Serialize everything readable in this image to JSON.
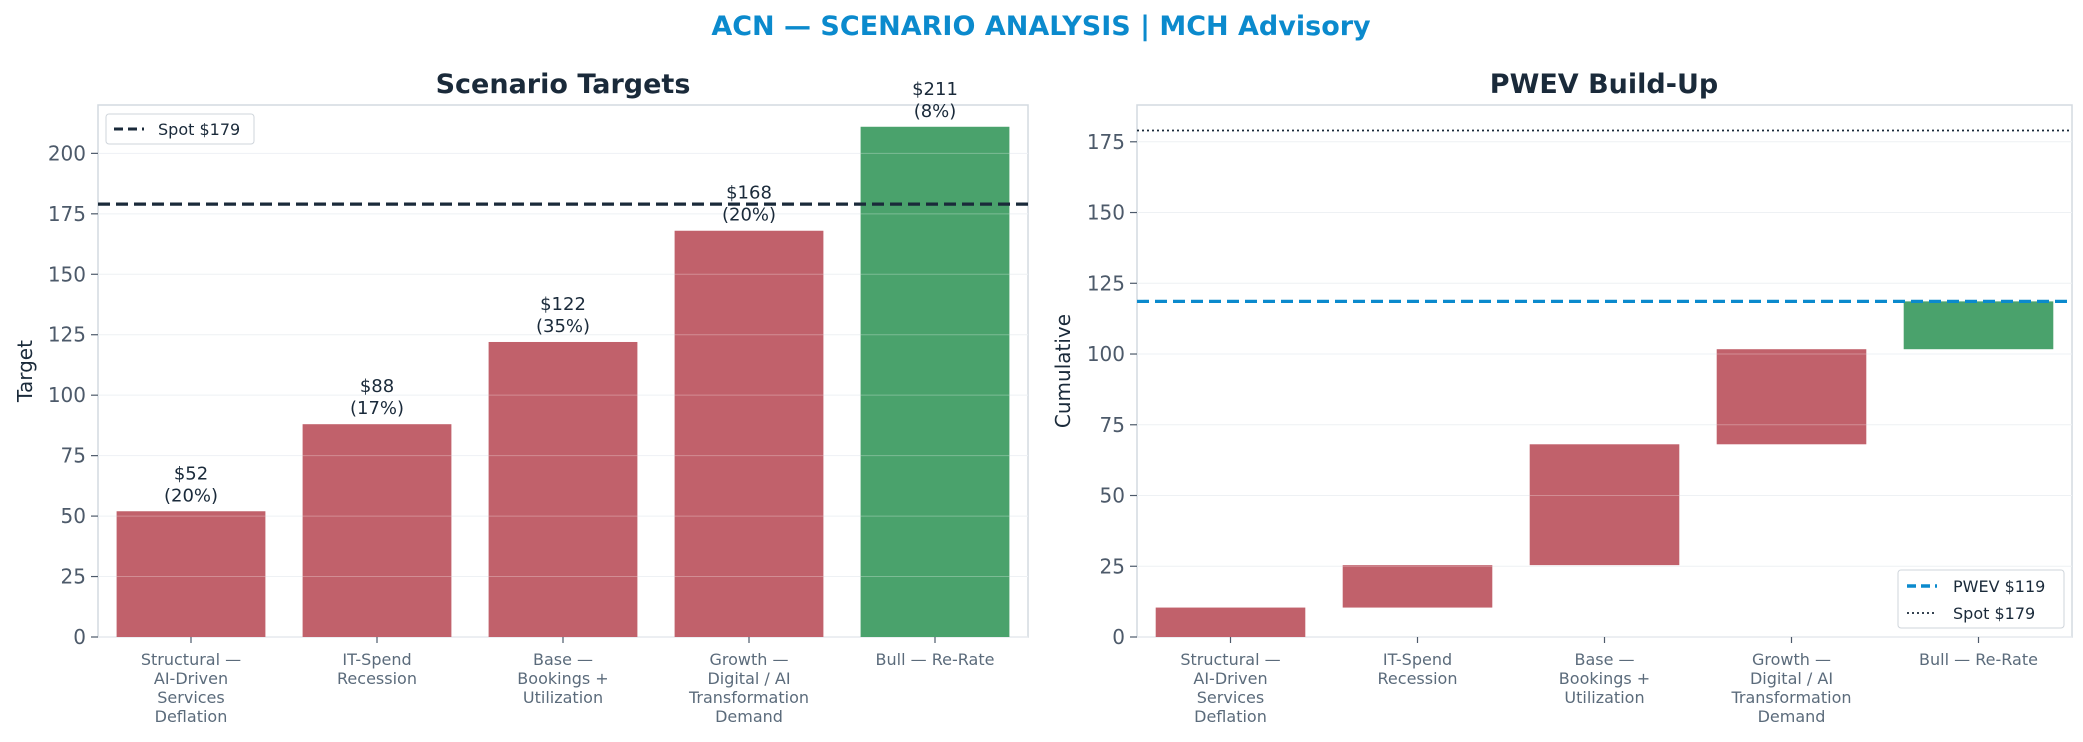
{
  "title": "ACN — SCENARIO ANALYSIS | MCH Advisory",
  "colors": {
    "title": "#0b8acd",
    "bear": "#c1616b",
    "bull": "#4aa26c",
    "spot": "#1a2a3a",
    "pwev": "#0b8acd"
  },
  "chart_data": [
    {
      "type": "bar",
      "title": "Scenario Targets",
      "xlabel": "",
      "ylabel": "Target",
      "ylim": [
        0,
        220
      ],
      "yticks": [
        0,
        25,
        50,
        75,
        100,
        125,
        150,
        175,
        200
      ],
      "categories": [
        "Structural — AI-Driven Services Deflation",
        "IT-Spend Recession",
        "Base — Bookings + Utilization",
        "Growth — Digital / AI Transformation Demand",
        "Bull — Re-Rate"
      ],
      "category_lines": [
        [
          "Structural —",
          "AI-Driven",
          "Services",
          "Deflation"
        ],
        [
          "IT-Spend",
          "Recession"
        ],
        [
          "Base —",
          "Bookings +",
          "Utilization"
        ],
        [
          "Growth —",
          "Digital / AI",
          "Transformation",
          "Demand"
        ],
        [
          "Bull — Re-Rate"
        ]
      ],
      "values": [
        52,
        88,
        122,
        168,
        211
      ],
      "data_labels": [
        [
          "$52",
          "(20%)"
        ],
        [
          "$88",
          "(17%)"
        ],
        [
          "$122",
          "(35%)"
        ],
        [
          "$168",
          "(20%)"
        ],
        [
          "$211",
          "(8%)"
        ]
      ],
      "bar_colors": [
        "#c1616b",
        "#c1616b",
        "#c1616b",
        "#c1616b",
        "#4aa26c"
      ],
      "reference_lines": [
        {
          "name": "Spot $179",
          "value": 179,
          "style": "dashed",
          "color": "#1a2a3a"
        }
      ],
      "legend": {
        "position": "upper-left",
        "entries": [
          "Spot $179"
        ]
      },
      "grid": true
    },
    {
      "type": "waterfall",
      "title": "PWEV Build-Up",
      "xlabel": "",
      "ylabel": "Cumulative",
      "ylim": [
        0,
        188
      ],
      "yticks": [
        0,
        25,
        50,
        75,
        100,
        125,
        150,
        175
      ],
      "categories": [
        "Structural — AI-Driven Services Deflation",
        "IT-Spend Recession",
        "Base — Bookings + Utilization",
        "Growth — Digital / AI Transformation Demand",
        "Bull — Re-Rate"
      ],
      "category_lines": [
        [
          "Structural —",
          "AI-Driven",
          "Services",
          "Deflation"
        ],
        [
          "IT-Spend",
          "Recession"
        ],
        [
          "Base —",
          "Bookings +",
          "Utilization"
        ],
        [
          "Growth —",
          "Digital / AI",
          "Transformation",
          "Demand"
        ],
        [
          "Bull — Re-Rate"
        ]
      ],
      "segments": [
        {
          "start": 0,
          "end": 10.4
        },
        {
          "start": 10.4,
          "end": 25.4
        },
        {
          "start": 25.4,
          "end": 68.1
        },
        {
          "start": 68.1,
          "end": 101.7
        },
        {
          "start": 101.7,
          "end": 118.6
        }
      ],
      "bar_colors": [
        "#c1616b",
        "#c1616b",
        "#c1616b",
        "#c1616b",
        "#4aa26c"
      ],
      "reference_lines": [
        {
          "name": "PWEV $119",
          "value": 118.6,
          "style": "dashed",
          "color": "#0b8acd"
        },
        {
          "name": "Spot $179",
          "value": 179,
          "style": "dotted",
          "color": "#1a2a3a"
        }
      ],
      "legend": {
        "position": "lower-right",
        "entries": [
          "PWEV $119",
          "Spot $179"
        ]
      },
      "grid": true
    }
  ]
}
